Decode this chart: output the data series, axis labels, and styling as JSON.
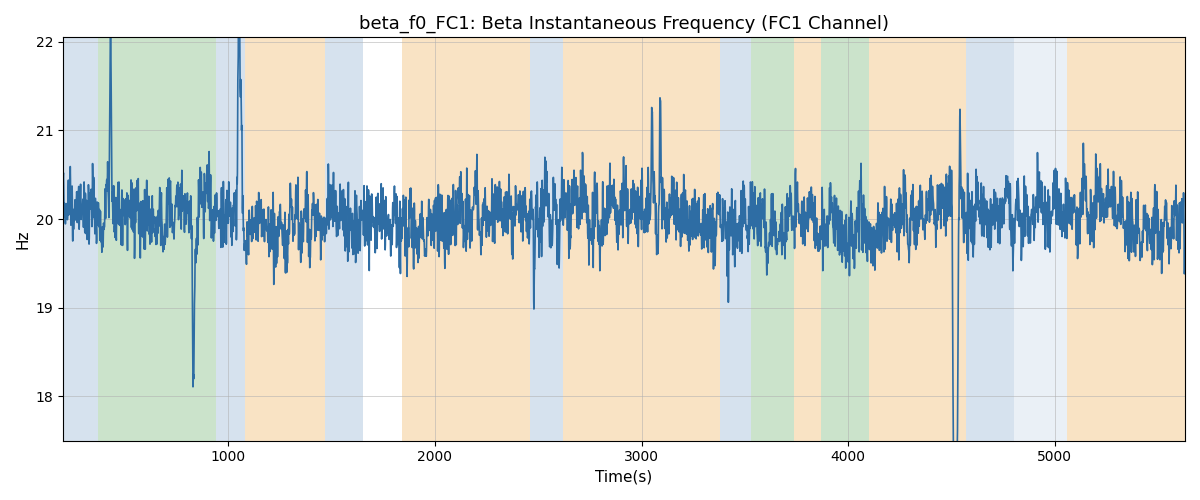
{
  "title": "beta_f0_FC1: Beta Instantaneous Frequency (FC1 Channel)",
  "xlabel": "Time(s)",
  "ylabel": "Hz",
  "xlim": [
    200,
    5630
  ],
  "ylim": [
    17.5,
    22.05
  ],
  "yticks": [
    18,
    19,
    20,
    21,
    22
  ],
  "xticks": [
    1000,
    2000,
    3000,
    4000,
    5000
  ],
  "line_color": "#2e6da4",
  "line_width": 1.2,
  "bg_bands": [
    {
      "xmin": 200,
      "xmax": 370,
      "color": "#aec6df",
      "alpha": 0.5
    },
    {
      "xmin": 370,
      "xmax": 940,
      "color": "#98c898",
      "alpha": 0.5
    },
    {
      "xmin": 940,
      "xmax": 1080,
      "color": "#aec6df",
      "alpha": 0.5
    },
    {
      "xmin": 1080,
      "xmax": 1470,
      "color": "#f5c88a",
      "alpha": 0.5
    },
    {
      "xmin": 1470,
      "xmax": 1650,
      "color": "#aec6df",
      "alpha": 0.5
    },
    {
      "xmin": 1650,
      "xmax": 1840,
      "color": "#ffffff",
      "alpha": 0.0
    },
    {
      "xmin": 1840,
      "xmax": 2460,
      "color": "#f5c88a",
      "alpha": 0.5
    },
    {
      "xmin": 2460,
      "xmax": 2620,
      "color": "#aec6df",
      "alpha": 0.5
    },
    {
      "xmin": 2620,
      "xmax": 3380,
      "color": "#f5c88a",
      "alpha": 0.5
    },
    {
      "xmin": 3380,
      "xmax": 3530,
      "color": "#aec6df",
      "alpha": 0.5
    },
    {
      "xmin": 3530,
      "xmax": 3740,
      "color": "#98c898",
      "alpha": 0.5
    },
    {
      "xmin": 3740,
      "xmax": 3870,
      "color": "#f5c88a",
      "alpha": 0.5
    },
    {
      "xmin": 3870,
      "xmax": 4100,
      "color": "#98c898",
      "alpha": 0.5
    },
    {
      "xmin": 4100,
      "xmax": 4570,
      "color": "#f5c88a",
      "alpha": 0.5
    },
    {
      "xmin": 4570,
      "xmax": 4800,
      "color": "#aec6df",
      "alpha": 0.5
    },
    {
      "xmin": 4800,
      "xmax": 5060,
      "color": "#aec6df",
      "alpha": 0.25
    },
    {
      "xmin": 5060,
      "xmax": 5630,
      "color": "#f5c88a",
      "alpha": 0.5
    }
  ],
  "grid_color": "#b0b0b0",
  "grid_alpha": 0.55,
  "seed": 1234,
  "base_freq": 20.0,
  "title_fontsize": 13
}
